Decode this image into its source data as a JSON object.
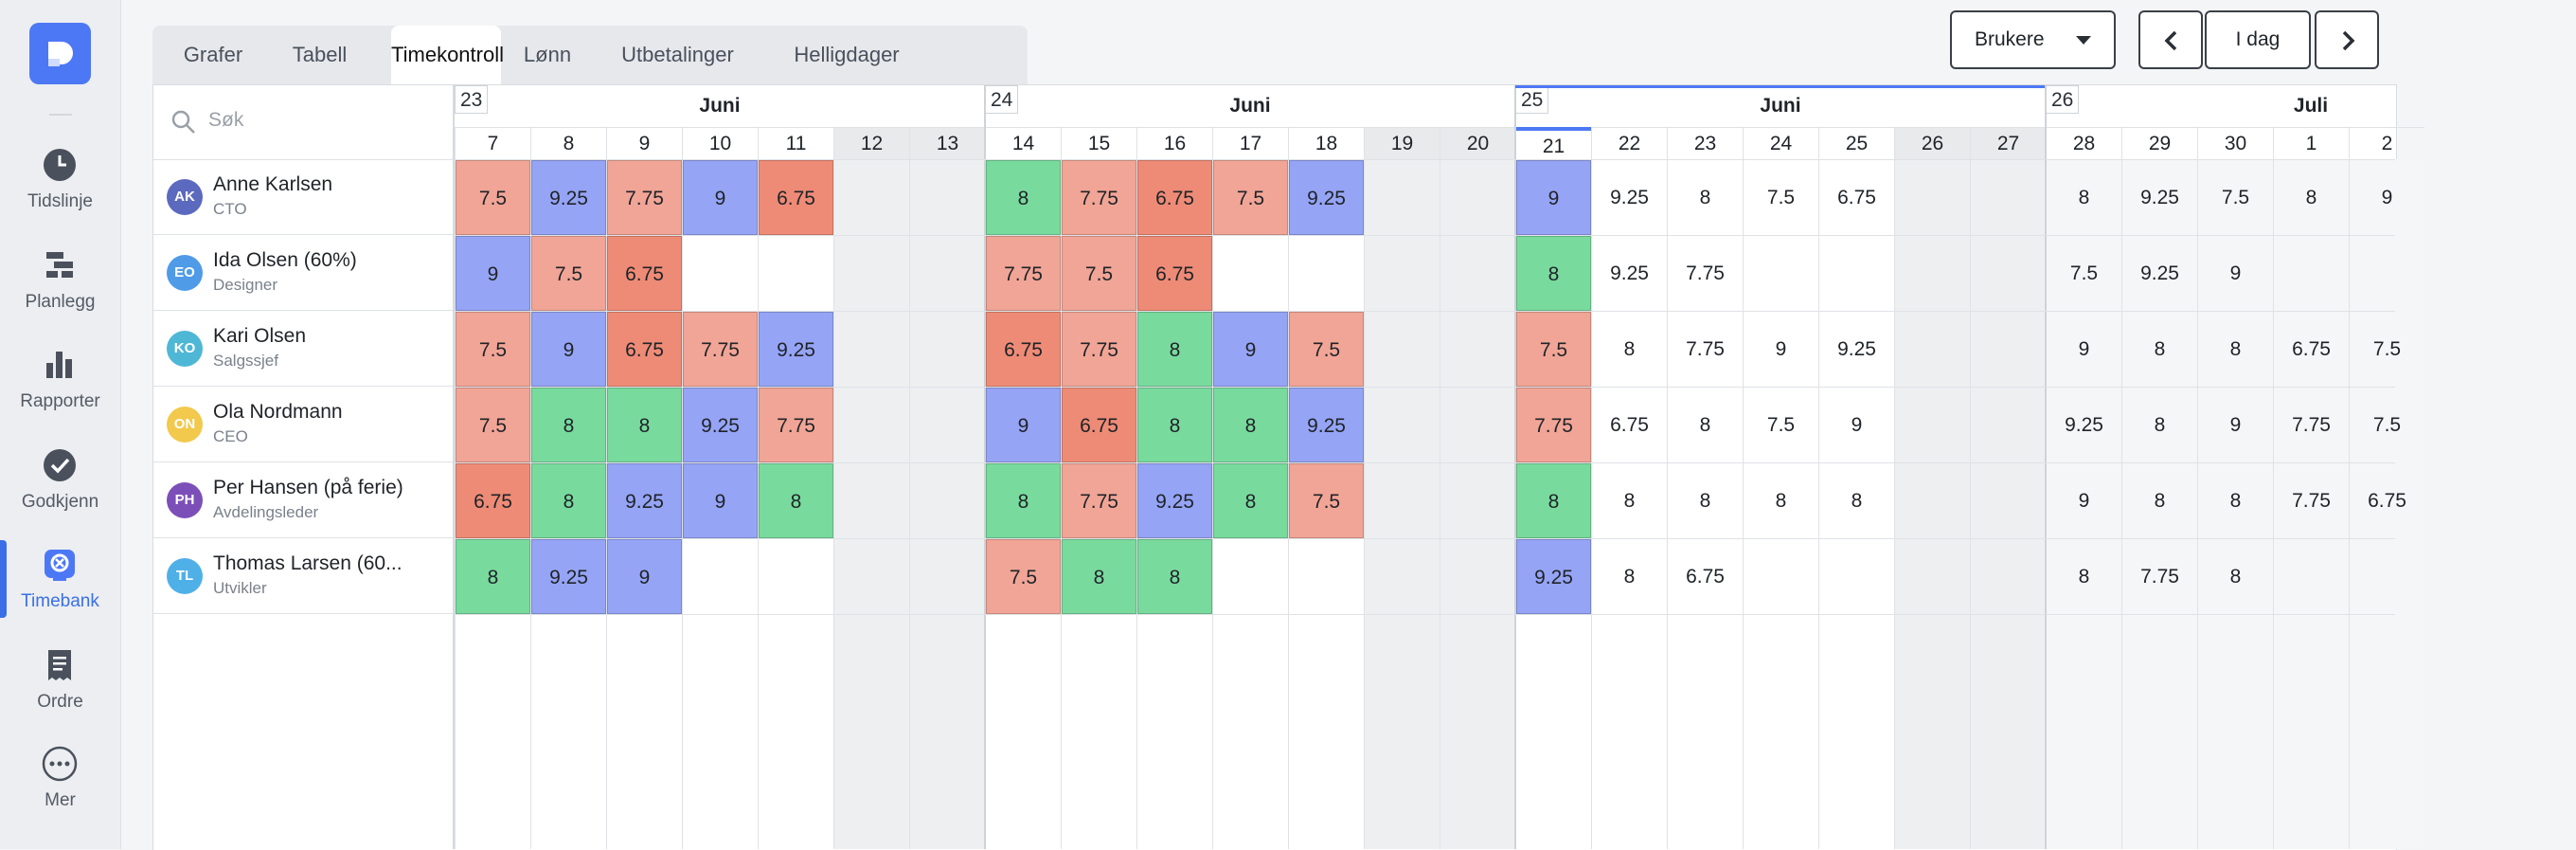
{
  "sidebar": {
    "items": [
      {
        "label": "Tidslinje",
        "icon": "clock-icon",
        "active": false
      },
      {
        "label": "Planlegg",
        "icon": "planner-icon",
        "active": false
      },
      {
        "label": "Rapporter",
        "icon": "bar-chart-icon",
        "active": false
      },
      {
        "label": "Godkjenn",
        "icon": "check-circle-icon",
        "active": false
      },
      {
        "label": "Timebank",
        "icon": "timebank-icon",
        "active": true
      },
      {
        "label": "Ordre",
        "icon": "receipt-icon",
        "active": false
      },
      {
        "label": "Mer",
        "icon": "more-icon",
        "active": false
      }
    ]
  },
  "tabs": [
    "Grafer",
    "Tabell",
    "Timekontroll",
    "Lønn",
    "Utbetalinger",
    "Helligdager"
  ],
  "active_tab": "Timekontroll",
  "controls": {
    "users_label": "Brukere",
    "today_label": "I dag"
  },
  "search": {
    "placeholder": "Søk"
  },
  "users": [
    {
      "initials": "AK",
      "name": "Anne Karlsen",
      "role": "CTO",
      "color": "#5b6abf"
    },
    {
      "initials": "EO",
      "name": "Ida Olsen (60%)",
      "role": "Designer",
      "color": "#4f9be8"
    },
    {
      "initials": "KO",
      "name": "Kari Olsen",
      "role": "Salgssjef",
      "color": "#4fb7d6"
    },
    {
      "initials": "ON",
      "name": "Ola Nordmann",
      "role": "CEO",
      "color": "#f2c94c"
    },
    {
      "initials": "PH",
      "name": "Per Hansen (på ferie)",
      "role": "Avdelingsleder",
      "color": "#7c4fb8"
    },
    {
      "initials": "TL",
      "name": "Thomas Larsen (60...",
      "role": "Utvikler",
      "color": "#4fb0e8"
    }
  ],
  "weeks": [
    {
      "number": "23",
      "month": "Juni"
    },
    {
      "number": "24",
      "month": "Juni"
    },
    {
      "number": "25",
      "month": "Juni"
    },
    {
      "number": "26",
      "month": "Juli"
    }
  ],
  "days": [
    "7",
    "8",
    "9",
    "10",
    "11",
    "12",
    "13",
    "14",
    "15",
    "16",
    "17",
    "18",
    "19",
    "20",
    "21",
    "22",
    "23",
    "24",
    "25",
    "26",
    "27",
    "28",
    "29",
    "30",
    "1",
    "2"
  ],
  "today_index": 14,
  "colors": {
    "red": "#f1a596",
    "darkred": "#ee8b76",
    "blue": "#95a4f5",
    "green": "#79da9e",
    "weekend": "#eeeff1",
    "accent": "#4d78f5"
  },
  "hours": [
    [
      [
        "7.5",
        "red"
      ],
      [
        "9.25",
        "blue"
      ],
      [
        "7.75",
        "red"
      ],
      [
        "9",
        "blue"
      ],
      [
        "6.75",
        "darkred"
      ],
      null,
      null,
      [
        "8",
        "green"
      ],
      [
        "7.75",
        "red"
      ],
      [
        "6.75",
        "darkred"
      ],
      [
        "7.5",
        "red"
      ],
      [
        "9.25",
        "blue"
      ],
      null,
      null,
      [
        "9",
        "blue"
      ],
      [
        "9.25",
        ""
      ],
      [
        "8",
        ""
      ],
      [
        "7.5",
        ""
      ],
      [
        "6.75",
        ""
      ],
      null,
      null,
      [
        "8",
        ""
      ],
      [
        "9.25",
        ""
      ],
      [
        "7.5",
        ""
      ],
      [
        "8",
        ""
      ],
      [
        "9",
        ""
      ]
    ],
    [
      [
        "9",
        "blue"
      ],
      [
        "7.5",
        "red"
      ],
      [
        "6.75",
        "darkred"
      ],
      null,
      null,
      null,
      null,
      [
        "7.75",
        "red"
      ],
      [
        "7.5",
        "red"
      ],
      [
        "6.75",
        "darkred"
      ],
      null,
      null,
      null,
      null,
      [
        "8",
        "green"
      ],
      [
        "9.25",
        ""
      ],
      [
        "7.75",
        ""
      ],
      null,
      null,
      null,
      null,
      [
        "7.5",
        ""
      ],
      [
        "9.25",
        ""
      ],
      [
        "9",
        ""
      ],
      null,
      null
    ],
    [
      [
        "7.5",
        "red"
      ],
      [
        "9",
        "blue"
      ],
      [
        "6.75",
        "darkred"
      ],
      [
        "7.75",
        "red"
      ],
      [
        "9.25",
        "blue"
      ],
      null,
      null,
      [
        "6.75",
        "darkred"
      ],
      [
        "7.75",
        "red"
      ],
      [
        "8",
        "green"
      ],
      [
        "9",
        "blue"
      ],
      [
        "7.5",
        "red"
      ],
      null,
      null,
      [
        "7.5",
        "red"
      ],
      [
        "8",
        ""
      ],
      [
        "7.75",
        ""
      ],
      [
        "9",
        ""
      ],
      [
        "9.25",
        ""
      ],
      null,
      null,
      [
        "9",
        ""
      ],
      [
        "8",
        ""
      ],
      [
        "8",
        ""
      ],
      [
        "6.75",
        ""
      ],
      [
        "7.5",
        ""
      ]
    ],
    [
      [
        "7.5",
        "red"
      ],
      [
        "8",
        "green"
      ],
      [
        "8",
        "green"
      ],
      [
        "9.25",
        "blue"
      ],
      [
        "7.75",
        "red"
      ],
      null,
      null,
      [
        "9",
        "blue"
      ],
      [
        "6.75",
        "darkred"
      ],
      [
        "8",
        "green"
      ],
      [
        "8",
        "green"
      ],
      [
        "9.25",
        "blue"
      ],
      null,
      null,
      [
        "7.75",
        "red"
      ],
      [
        "6.75",
        ""
      ],
      [
        "8",
        ""
      ],
      [
        "7.5",
        ""
      ],
      [
        "9",
        ""
      ],
      null,
      null,
      [
        "9.25",
        ""
      ],
      [
        "8",
        ""
      ],
      [
        "9",
        ""
      ],
      [
        "7.75",
        ""
      ],
      [
        "7.5",
        ""
      ]
    ],
    [
      [
        "6.75",
        "darkred"
      ],
      [
        "8",
        "green"
      ],
      [
        "9.25",
        "blue"
      ],
      [
        "9",
        "blue"
      ],
      [
        "8",
        "green"
      ],
      null,
      null,
      [
        "8",
        "green"
      ],
      [
        "7.75",
        "red"
      ],
      [
        "9.25",
        "blue"
      ],
      [
        "8",
        "green"
      ],
      [
        "7.5",
        "red"
      ],
      null,
      null,
      [
        "8",
        "green"
      ],
      [
        "8",
        ""
      ],
      [
        "8",
        ""
      ],
      [
        "8",
        ""
      ],
      [
        "8",
        ""
      ],
      null,
      null,
      [
        "9",
        ""
      ],
      [
        "8",
        ""
      ],
      [
        "8",
        ""
      ],
      [
        "7.75",
        ""
      ],
      [
        "6.75",
        ""
      ]
    ],
    [
      [
        "8",
        "green"
      ],
      [
        "9.25",
        "blue"
      ],
      [
        "9",
        "blue"
      ],
      null,
      null,
      null,
      null,
      [
        "7.5",
        "red"
      ],
      [
        "8",
        "green"
      ],
      [
        "8",
        "green"
      ],
      null,
      null,
      null,
      null,
      [
        "9.25",
        "blue"
      ],
      [
        "8",
        ""
      ],
      [
        "6.75",
        ""
      ],
      null,
      null,
      null,
      null,
      [
        "8",
        ""
      ],
      [
        "7.75",
        ""
      ],
      [
        "8",
        ""
      ],
      null,
      null
    ]
  ]
}
